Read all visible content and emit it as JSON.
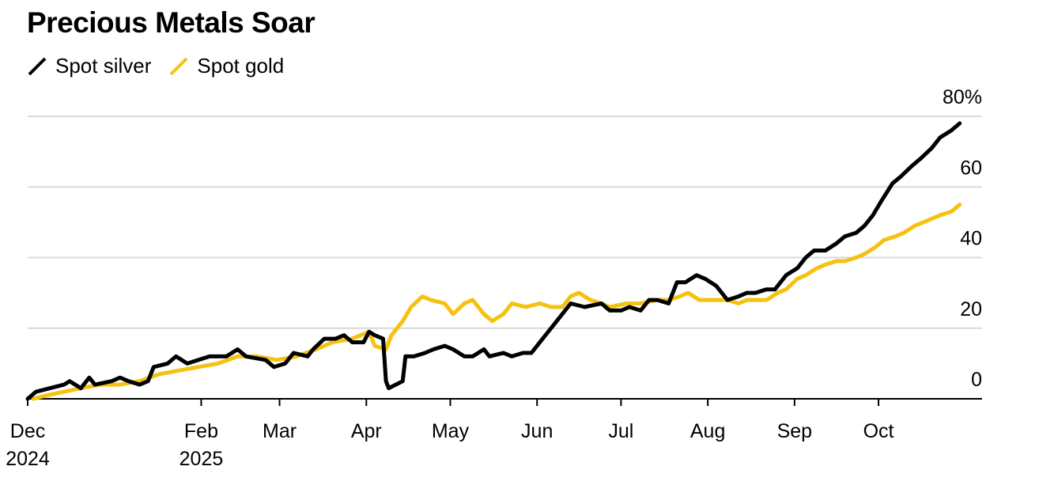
{
  "title": "Precious Metals Soar",
  "legend": [
    {
      "label": "Spot silver",
      "color": "#000000"
    },
    {
      "label": "Spot gold",
      "color": "#f5c211"
    }
  ],
  "chart_data": {
    "type": "line",
    "title": "Precious Metals Soar",
    "xlabel": "",
    "ylabel": "",
    "ylim": [
      0,
      80
    ],
    "y_ticks": [
      {
        "value": 80,
        "label": "80%"
      },
      {
        "value": 60,
        "label": "60"
      },
      {
        "value": 40,
        "label": "40"
      },
      {
        "value": 20,
        "label": "20"
      },
      {
        "value": 0,
        "label": "0"
      }
    ],
    "x_range": [
      "2024-12-01",
      "2025-11-07"
    ],
    "x_ticks": [
      {
        "date": "2024-12-01",
        "lines": [
          "Dec",
          "2024"
        ]
      },
      {
        "date": "2025-02-01",
        "lines": [
          "Feb",
          "2025"
        ]
      },
      {
        "date": "2025-03-01",
        "lines": [
          "Mar"
        ]
      },
      {
        "date": "2025-04-01",
        "lines": [
          "Apr"
        ]
      },
      {
        "date": "2025-05-01",
        "lines": [
          "May"
        ]
      },
      {
        "date": "2025-06-01",
        "lines": [
          "Jun"
        ]
      },
      {
        "date": "2025-07-01",
        "lines": [
          "Jul"
        ]
      },
      {
        "date": "2025-08-01",
        "lines": [
          "Aug"
        ]
      },
      {
        "date": "2025-09-01",
        "lines": [
          "Sep"
        ]
      },
      {
        "date": "2025-10-01",
        "lines": [
          "Oct"
        ]
      }
    ],
    "grid": true,
    "legend_position": "top-left",
    "series": [
      {
        "name": "Spot silver",
        "color": "#000000",
        "points": [
          [
            "2024-12-01",
            0
          ],
          [
            "2024-12-04",
            2
          ],
          [
            "2024-12-09",
            3
          ],
          [
            "2024-12-14",
            4
          ],
          [
            "2024-12-16",
            5
          ],
          [
            "2024-12-20",
            3
          ],
          [
            "2024-12-23",
            6
          ],
          [
            "2024-12-25",
            4
          ],
          [
            "2024-12-31",
            5
          ],
          [
            "2025-01-03",
            6
          ],
          [
            "2025-01-06",
            5
          ],
          [
            "2025-01-10",
            4
          ],
          [
            "2025-01-13",
            5
          ],
          [
            "2025-01-15",
            9
          ],
          [
            "2025-01-20",
            10
          ],
          [
            "2025-01-23",
            12
          ],
          [
            "2025-01-27",
            10
          ],
          [
            "2025-01-31",
            11
          ],
          [
            "2025-02-04",
            12
          ],
          [
            "2025-02-10",
            12
          ],
          [
            "2025-02-14",
            14
          ],
          [
            "2025-02-17",
            12
          ],
          [
            "2025-02-24",
            11
          ],
          [
            "2025-02-27",
            9
          ],
          [
            "2025-03-03",
            10
          ],
          [
            "2025-03-06",
            13
          ],
          [
            "2025-03-11",
            12
          ],
          [
            "2025-03-13",
            14
          ],
          [
            "2025-03-17",
            17
          ],
          [
            "2025-03-21",
            17
          ],
          [
            "2025-03-24",
            18
          ],
          [
            "2025-03-27",
            16
          ],
          [
            "2025-03-31",
            16
          ],
          [
            "2025-04-02",
            19
          ],
          [
            "2025-04-04",
            18
          ],
          [
            "2025-04-07",
            17
          ],
          [
            "2025-04-08",
            5
          ],
          [
            "2025-04-09",
            3
          ],
          [
            "2025-04-14",
            5
          ],
          [
            "2025-04-15",
            12
          ],
          [
            "2025-04-18",
            12
          ],
          [
            "2025-04-22",
            13
          ],
          [
            "2025-04-25",
            14
          ],
          [
            "2025-04-29",
            15
          ],
          [
            "2025-05-02",
            14
          ],
          [
            "2025-05-06",
            12
          ],
          [
            "2025-05-09",
            12
          ],
          [
            "2025-05-13",
            14
          ],
          [
            "2025-05-15",
            12
          ],
          [
            "2025-05-20",
            13
          ],
          [
            "2025-05-23",
            12
          ],
          [
            "2025-05-27",
            13
          ],
          [
            "2025-05-30",
            13
          ],
          [
            "2025-06-02",
            16
          ],
          [
            "2025-06-06",
            20
          ],
          [
            "2025-06-10",
            24
          ],
          [
            "2025-06-13",
            27
          ],
          [
            "2025-06-18",
            26
          ],
          [
            "2025-06-24",
            27
          ],
          [
            "2025-06-27",
            25
          ],
          [
            "2025-07-01",
            25
          ],
          [
            "2025-07-04",
            26
          ],
          [
            "2025-07-08",
            25
          ],
          [
            "2025-07-11",
            28
          ],
          [
            "2025-07-14",
            28
          ],
          [
            "2025-07-18",
            27
          ],
          [
            "2025-07-21",
            33
          ],
          [
            "2025-07-24",
            33
          ],
          [
            "2025-07-28",
            35
          ],
          [
            "2025-07-31",
            34
          ],
          [
            "2025-08-04",
            32
          ],
          [
            "2025-08-08",
            28
          ],
          [
            "2025-08-12",
            29
          ],
          [
            "2025-08-15",
            30
          ],
          [
            "2025-08-18",
            30
          ],
          [
            "2025-08-22",
            31
          ],
          [
            "2025-08-25",
            31
          ],
          [
            "2025-08-29",
            35
          ],
          [
            "2025-09-02",
            37
          ],
          [
            "2025-09-05",
            40
          ],
          [
            "2025-09-08",
            42
          ],
          [
            "2025-09-12",
            42
          ],
          [
            "2025-09-16",
            44
          ],
          [
            "2025-09-19",
            46
          ],
          [
            "2025-09-23",
            47
          ],
          [
            "2025-09-26",
            49
          ],
          [
            "2025-09-29",
            52
          ],
          [
            "2025-10-02",
            56
          ],
          [
            "2025-10-06",
            61
          ],
          [
            "2025-10-09",
            63
          ],
          [
            "2025-10-13",
            66
          ],
          [
            "2025-10-16",
            68
          ],
          [
            "2025-10-20",
            71
          ],
          [
            "2025-10-23",
            74
          ],
          [
            "2025-10-27",
            76
          ],
          [
            "2025-10-30",
            78
          ]
        ]
      },
      {
        "name": "Spot gold",
        "color": "#f5c211",
        "points": [
          [
            "2024-12-03",
            0
          ],
          [
            "2024-12-08",
            1
          ],
          [
            "2024-12-14",
            2
          ],
          [
            "2024-12-20",
            3
          ],
          [
            "2024-12-27",
            4
          ],
          [
            "2025-01-03",
            4
          ],
          [
            "2025-01-10",
            5
          ],
          [
            "2025-01-17",
            7
          ],
          [
            "2025-01-24",
            8
          ],
          [
            "2025-01-31",
            9
          ],
          [
            "2025-02-07",
            10
          ],
          [
            "2025-02-14",
            12
          ],
          [
            "2025-02-21",
            12
          ],
          [
            "2025-02-28",
            11
          ],
          [
            "2025-03-07",
            12
          ],
          [
            "2025-03-14",
            14
          ],
          [
            "2025-03-20",
            16
          ],
          [
            "2025-03-27",
            17
          ],
          [
            "2025-04-02",
            19
          ],
          [
            "2025-04-04",
            15
          ],
          [
            "2025-04-08",
            14
          ],
          [
            "2025-04-10",
            18
          ],
          [
            "2025-04-14",
            22
          ],
          [
            "2025-04-17",
            26
          ],
          [
            "2025-04-21",
            29
          ],
          [
            "2025-04-24",
            28
          ],
          [
            "2025-04-29",
            27
          ],
          [
            "2025-05-02",
            24
          ],
          [
            "2025-05-06",
            27
          ],
          [
            "2025-05-09",
            28
          ],
          [
            "2025-05-13",
            24
          ],
          [
            "2025-05-16",
            22
          ],
          [
            "2025-05-20",
            24
          ],
          [
            "2025-05-23",
            27
          ],
          [
            "2025-05-28",
            26
          ],
          [
            "2025-06-02",
            27
          ],
          [
            "2025-06-06",
            26
          ],
          [
            "2025-06-10",
            26
          ],
          [
            "2025-06-13",
            29
          ],
          [
            "2025-06-16",
            30
          ],
          [
            "2025-06-20",
            28
          ],
          [
            "2025-06-24",
            27
          ],
          [
            "2025-06-27",
            26
          ],
          [
            "2025-07-03",
            27
          ],
          [
            "2025-07-08",
            27
          ],
          [
            "2025-07-14",
            28
          ],
          [
            "2025-07-18",
            28
          ],
          [
            "2025-07-22",
            29
          ],
          [
            "2025-07-25",
            30
          ],
          [
            "2025-07-29",
            28
          ],
          [
            "2025-08-01",
            28
          ],
          [
            "2025-08-05",
            28
          ],
          [
            "2025-08-08",
            28
          ],
          [
            "2025-08-12",
            27
          ],
          [
            "2025-08-15",
            28
          ],
          [
            "2025-08-19",
            28
          ],
          [
            "2025-08-22",
            28
          ],
          [
            "2025-08-26",
            30
          ],
          [
            "2025-08-29",
            31
          ],
          [
            "2025-09-02",
            34
          ],
          [
            "2025-09-05",
            35
          ],
          [
            "2025-09-09",
            37
          ],
          [
            "2025-09-12",
            38
          ],
          [
            "2025-09-16",
            39
          ],
          [
            "2025-09-19",
            39
          ],
          [
            "2025-09-23",
            40
          ],
          [
            "2025-09-26",
            41
          ],
          [
            "2025-09-30",
            43
          ],
          [
            "2025-10-03",
            45
          ],
          [
            "2025-10-07",
            46
          ],
          [
            "2025-10-10",
            47
          ],
          [
            "2025-10-14",
            49
          ],
          [
            "2025-10-17",
            50
          ],
          [
            "2025-10-20",
            51
          ],
          [
            "2025-10-23",
            52
          ],
          [
            "2025-10-27",
            53
          ],
          [
            "2025-10-30",
            55
          ]
        ]
      }
    ]
  }
}
